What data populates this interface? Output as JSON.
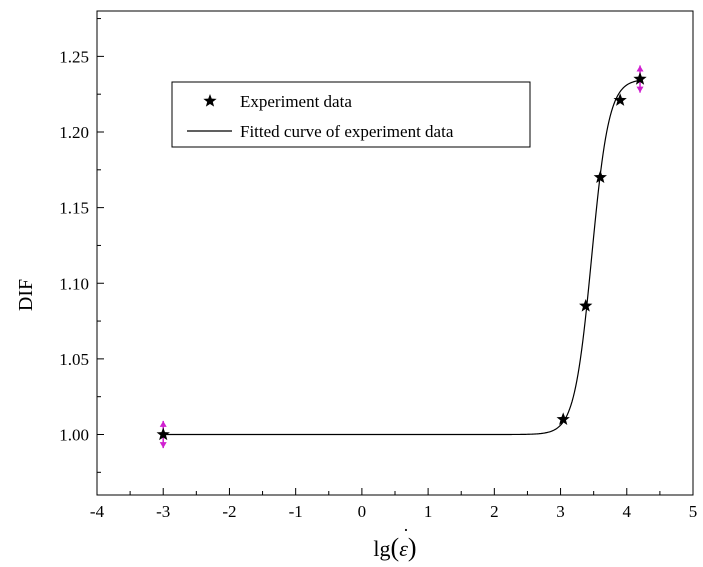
{
  "chart_data": {
    "type": "scatter",
    "title": "",
    "xlabel": "lg(ε̇)",
    "xlabel_parts": {
      "func": "lg",
      "open": "(",
      "symbol": "ε",
      "dot": "˙",
      "close": ")"
    },
    "ylabel": "DIF",
    "xlim": [
      -4,
      5
    ],
    "ylim": [
      0.96,
      1.28
    ],
    "x_ticks": [
      -4,
      -3,
      -2,
      -1,
      0,
      1,
      2,
      3,
      4,
      5
    ],
    "x_tick_labels": [
      "-4",
      "-3",
      "-2",
      "-1",
      "0",
      "1",
      "2",
      "3",
      "4",
      "5"
    ],
    "y_ticks": [
      1.0,
      1.05,
      1.1,
      1.15,
      1.2,
      1.25
    ],
    "y_tick_labels": [
      "1.00",
      "1.05",
      "1.10",
      "1.15",
      "1.20",
      "1.25"
    ],
    "grid": false,
    "legend_position": "top-left",
    "series": [
      {
        "name": "Experiment data",
        "kind": "scatter",
        "marker": "star",
        "color": "#000000",
        "x": [
          -3.0,
          3.04,
          3.38,
          3.6,
          3.9,
          4.2
        ],
        "y": [
          1.0,
          1.01,
          1.085,
          1.17,
          1.221,
          1.235
        ]
      },
      {
        "name": "Fitted curve of experiment data",
        "kind": "line",
        "color": "#000000",
        "curve": {
          "base": 1.0,
          "amplitude": 0.235,
          "center": 3.47,
          "width": 0.13,
          "x_start": -3.0,
          "x_end": 4.2
        }
      }
    ],
    "error_bars": {
      "color": "#d020d0",
      "points": [
        {
          "x": -3.0,
          "y": 1.0,
          "low": 0.991,
          "high": 1.009
        },
        {
          "x": 4.2,
          "y": 1.235,
          "low": 1.226,
          "high": 1.244
        }
      ]
    }
  }
}
